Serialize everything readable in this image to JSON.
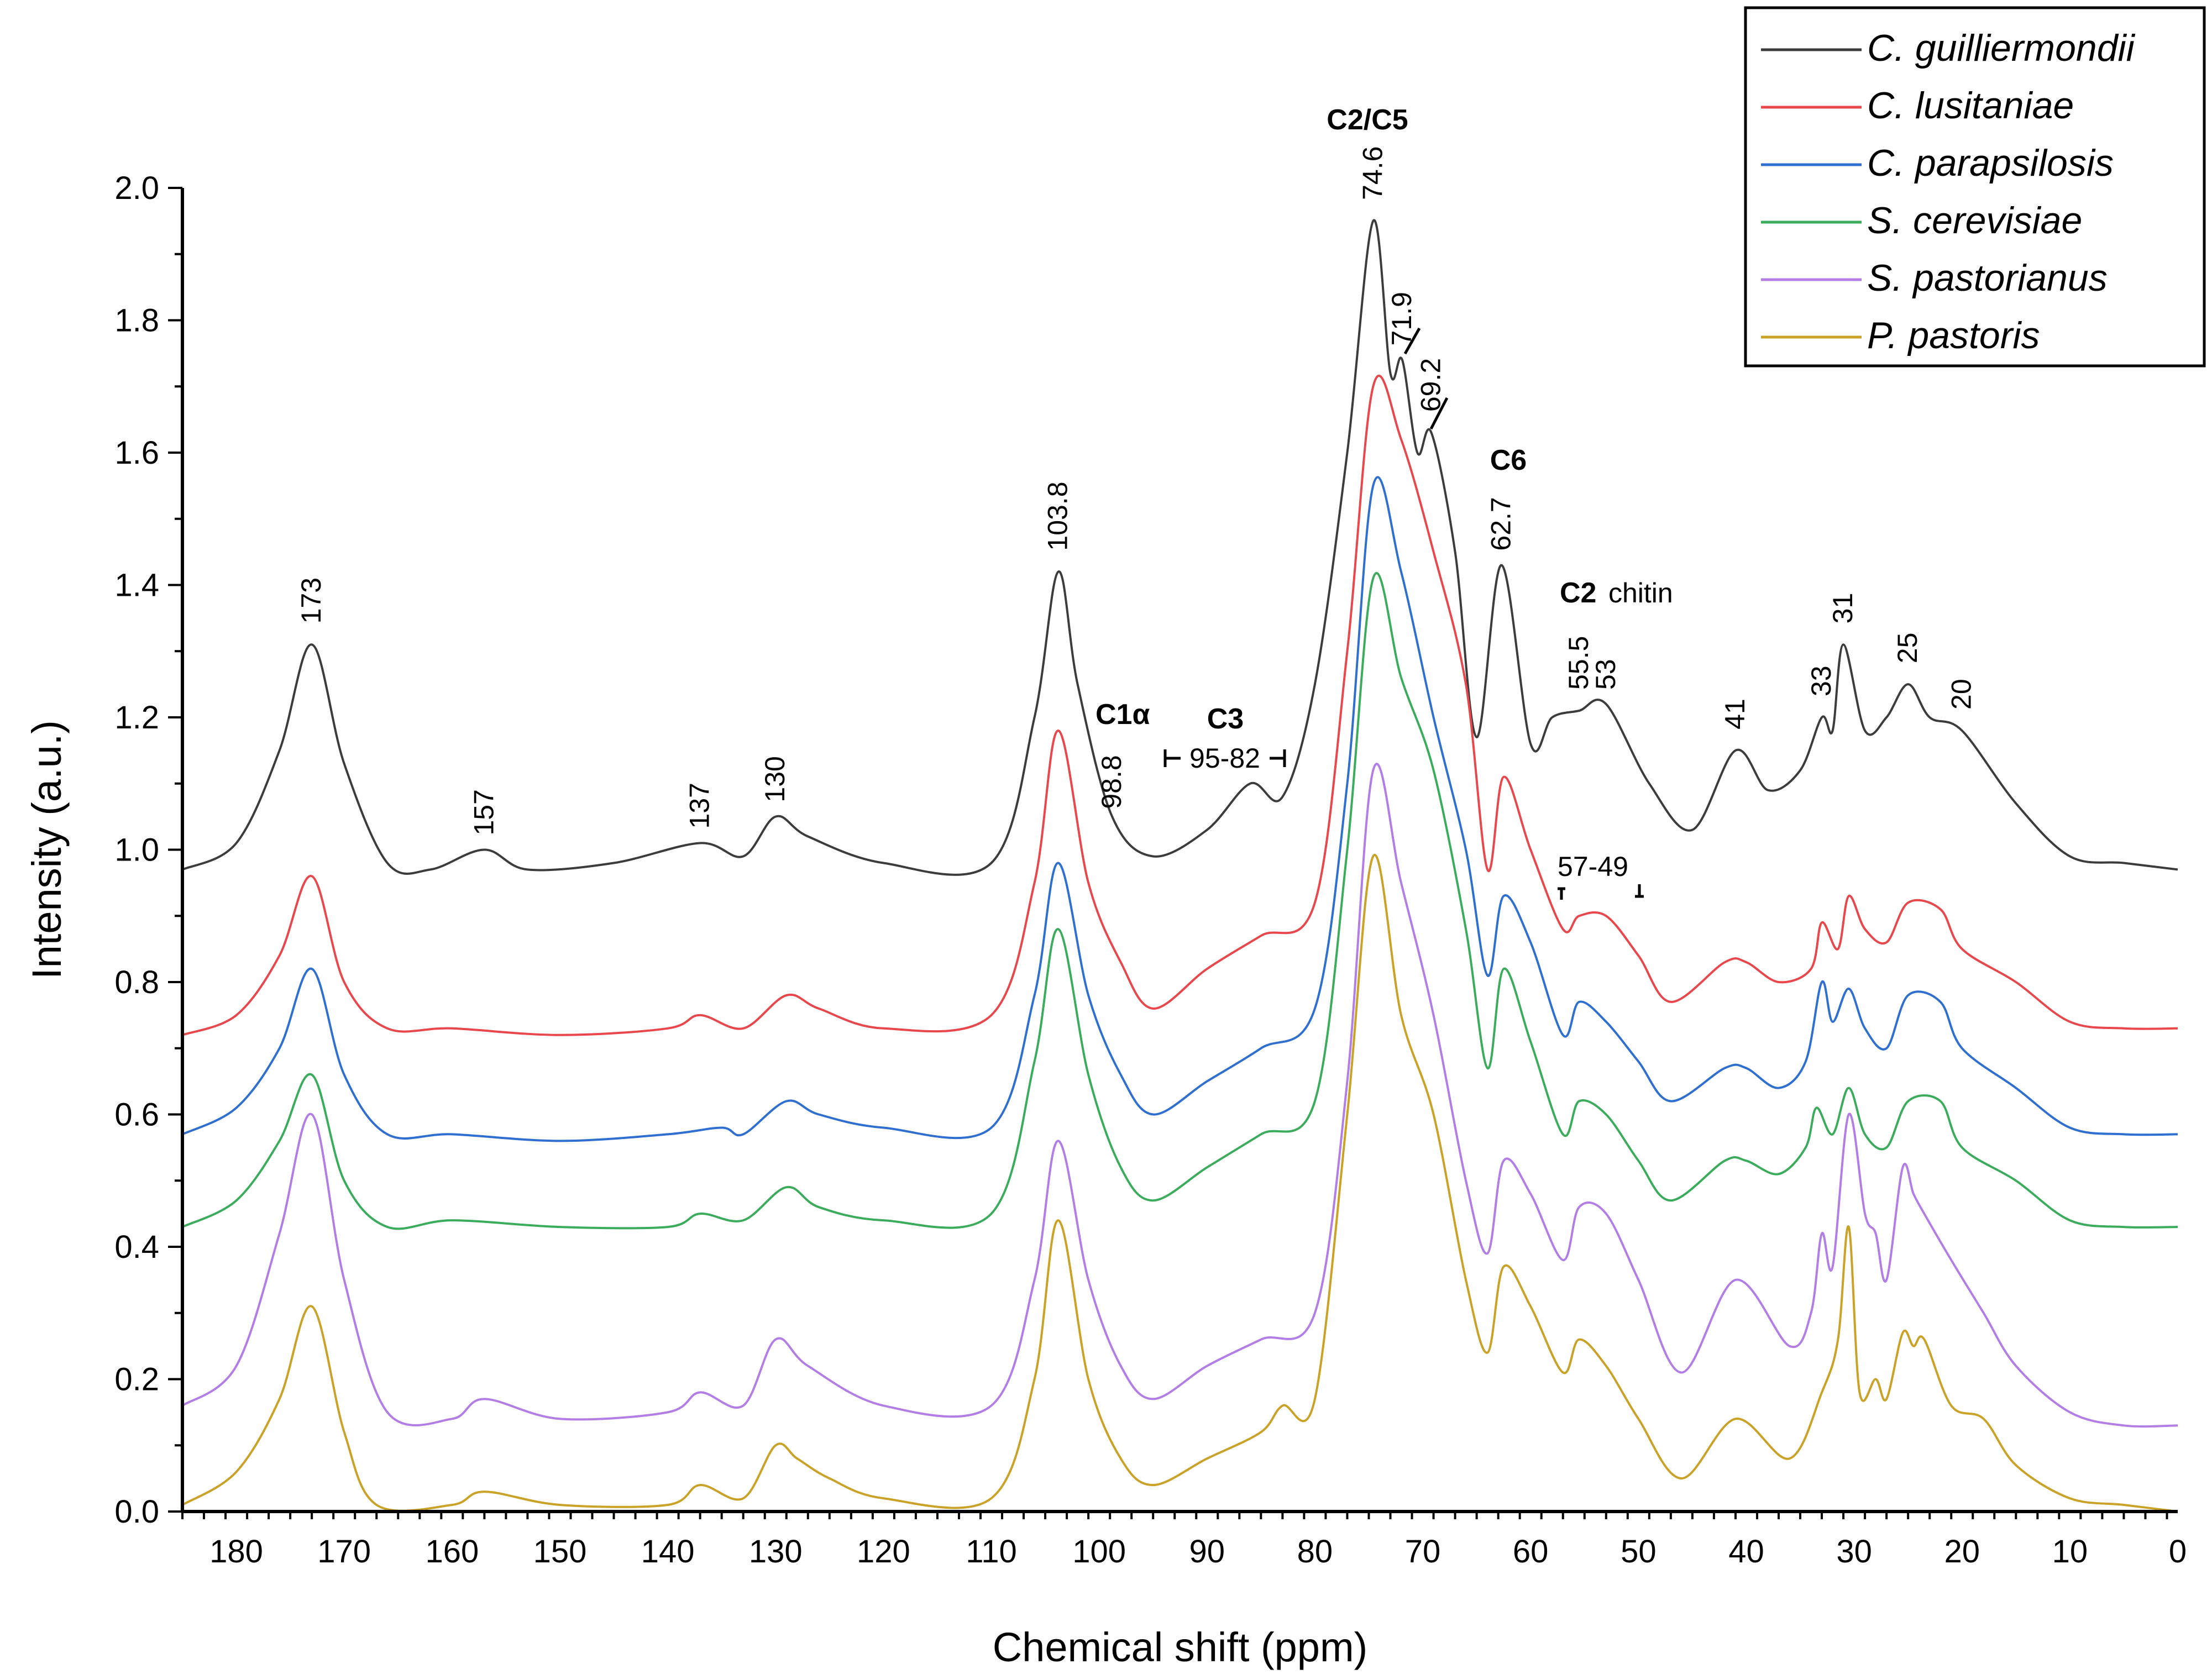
{
  "chart_data": {
    "type": "line",
    "title": "",
    "xlabel": "Chemical shift (ppm)",
    "ylabel": "Intensity (a.u.)",
    "xlim": [
      185,
      0
    ],
    "ylim": [
      0.0,
      2.0
    ],
    "x_ticks": [
      180,
      170,
      160,
      150,
      140,
      130,
      120,
      110,
      100,
      90,
      80,
      70,
      60,
      50,
      40,
      30,
      20,
      10,
      0
    ],
    "y_ticks": [
      "0.0",
      "0.2",
      "0.4",
      "0.6",
      "0.8",
      "1.0",
      "1.2",
      "1.4",
      "1.6",
      "1.8",
      "2.0"
    ],
    "y_tick_values": [
      0.0,
      0.2,
      0.4,
      0.6,
      0.8,
      1.0,
      1.2,
      1.4,
      1.6,
      1.8,
      2.0
    ],
    "legend_position": "top-right",
    "series": [
      {
        "name": "C. guilliermondii",
        "color": "#3c3c3c",
        "x": [
          185,
          180,
          176,
          173,
          170,
          166,
          162,
          157,
          153,
          145,
          137,
          133,
          130,
          127,
          120,
          110,
          106,
          103.8,
          102,
          98.8,
          95,
          90,
          86,
          83,
          80,
          77,
          74.6,
          73,
          71.9,
          70.5,
          69.2,
          67,
          65,
          62.7,
          60,
          58,
          55.5,
          53,
          49,
          45,
          41,
          38,
          35,
          33,
          32,
          31,
          29,
          27,
          25,
          23,
          20,
          15,
          10,
          5,
          0
        ],
        "values": [
          0.97,
          1.01,
          1.15,
          1.31,
          1.13,
          0.98,
          0.97,
          1.0,
          0.97,
          0.98,
          1.01,
          0.99,
          1.05,
          1.02,
          0.98,
          0.98,
          1.2,
          1.42,
          1.25,
          1.05,
          0.99,
          1.03,
          1.1,
          1.08,
          1.25,
          1.6,
          1.95,
          1.72,
          1.74,
          1.6,
          1.63,
          1.45,
          1.17,
          1.43,
          1.16,
          1.2,
          1.21,
          1.22,
          1.1,
          1.03,
          1.15,
          1.09,
          1.12,
          1.2,
          1.18,
          1.31,
          1.18,
          1.2,
          1.25,
          1.2,
          1.18,
          1.07,
          0.99,
          0.98,
          0.97
        ]
      },
      {
        "name": "C. lusitaniae",
        "color": "#e8474c",
        "x": [
          185,
          180,
          176,
          173,
          170,
          166,
          160,
          150,
          140,
          137,
          133,
          129,
          126,
          120,
          110,
          106,
          103.8,
          101,
          98,
          95,
          90,
          85,
          80,
          77,
          74.6,
          72,
          69,
          66,
          64,
          62.5,
          60,
          57,
          55.5,
          53,
          50,
          47,
          42,
          40,
          37,
          34,
          33,
          31.5,
          30.5,
          29,
          27,
          25,
          22,
          20,
          15,
          10,
          5,
          0
        ],
        "values": [
          0.72,
          0.75,
          0.84,
          0.96,
          0.8,
          0.73,
          0.73,
          0.72,
          0.73,
          0.75,
          0.73,
          0.78,
          0.76,
          0.73,
          0.75,
          0.95,
          1.18,
          0.95,
          0.83,
          0.76,
          0.82,
          0.87,
          0.92,
          1.3,
          1.7,
          1.62,
          1.45,
          1.25,
          0.97,
          1.11,
          1.0,
          0.88,
          0.9,
          0.9,
          0.84,
          0.77,
          0.83,
          0.83,
          0.8,
          0.82,
          0.89,
          0.85,
          0.93,
          0.88,
          0.86,
          0.92,
          0.91,
          0.85,
          0.8,
          0.74,
          0.73,
          0.73
        ]
      },
      {
        "name": "C. parapsilosis",
        "color": "#2f6fd0",
        "x": [
          185,
          180,
          176,
          173,
          170,
          166,
          160,
          150,
          140,
          135,
          133,
          129,
          126,
          120,
          110,
          106,
          103.8,
          101,
          98,
          95,
          90,
          85,
          80,
          77,
          74.6,
          72,
          69,
          66,
          64,
          62.5,
          60,
          57,
          55.5,
          53,
          50,
          47,
          42,
          40,
          37,
          34.5,
          33,
          32,
          30.5,
          29,
          27,
          25,
          22,
          20,
          15,
          10,
          5,
          0
        ],
        "values": [
          0.57,
          0.61,
          0.7,
          0.82,
          0.66,
          0.57,
          0.57,
          0.56,
          0.57,
          0.58,
          0.57,
          0.62,
          0.6,
          0.58,
          0.58,
          0.78,
          0.98,
          0.78,
          0.66,
          0.6,
          0.65,
          0.7,
          0.76,
          1.1,
          1.55,
          1.42,
          1.2,
          1.0,
          0.81,
          0.93,
          0.86,
          0.72,
          0.77,
          0.74,
          0.68,
          0.62,
          0.67,
          0.67,
          0.64,
          0.68,
          0.8,
          0.74,
          0.79,
          0.73,
          0.7,
          0.78,
          0.77,
          0.7,
          0.64,
          0.58,
          0.57,
          0.57
        ]
      },
      {
        "name": "S. cerevisiae",
        "color": "#3bab5c",
        "x": [
          185,
          180,
          176,
          173,
          170,
          166,
          160,
          150,
          140,
          137,
          133,
          129,
          126,
          120,
          110,
          106,
          103.8,
          101,
          98,
          95,
          90,
          85,
          80,
          77,
          74.6,
          72,
          69,
          66,
          64,
          62.5,
          60,
          57,
          55.5,
          53,
          50,
          47,
          42,
          40,
          37,
          34.5,
          33.5,
          32,
          30.5,
          29,
          27,
          25,
          22,
          20,
          15,
          10,
          5,
          0
        ],
        "values": [
          0.43,
          0.47,
          0.56,
          0.66,
          0.5,
          0.43,
          0.44,
          0.43,
          0.43,
          0.45,
          0.44,
          0.49,
          0.46,
          0.44,
          0.45,
          0.68,
          0.88,
          0.66,
          0.52,
          0.47,
          0.52,
          0.57,
          0.62,
          1.0,
          1.41,
          1.26,
          1.12,
          0.88,
          0.67,
          0.82,
          0.71,
          0.57,
          0.62,
          0.6,
          0.53,
          0.47,
          0.53,
          0.53,
          0.51,
          0.55,
          0.61,
          0.57,
          0.64,
          0.57,
          0.55,
          0.62,
          0.62,
          0.55,
          0.5,
          0.44,
          0.43,
          0.43
        ]
      },
      {
        "name": "S. pastorianus",
        "color": "#b37de6",
        "x": [
          185,
          180,
          176,
          173,
          170,
          166,
          160,
          157,
          150,
          140,
          137,
          133,
          130,
          127,
          120,
          110,
          106,
          103.8,
          101,
          98,
          95,
          90,
          85,
          80,
          77,
          74.6,
          72,
          69,
          66,
          64,
          62.5,
          60,
          57,
          55.5,
          53,
          50,
          46,
          41,
          36,
          34,
          33,
          32,
          30.5,
          29,
          28,
          27,
          25.5,
          24.5,
          23.5,
          21,
          18,
          15,
          10,
          5,
          0
        ],
        "values": [
          0.16,
          0.22,
          0.42,
          0.6,
          0.35,
          0.15,
          0.14,
          0.17,
          0.14,
          0.15,
          0.18,
          0.16,
          0.26,
          0.22,
          0.16,
          0.16,
          0.35,
          0.56,
          0.35,
          0.22,
          0.17,
          0.22,
          0.26,
          0.3,
          0.65,
          1.12,
          0.95,
          0.75,
          0.5,
          0.39,
          0.53,
          0.48,
          0.38,
          0.46,
          0.45,
          0.35,
          0.21,
          0.35,
          0.25,
          0.3,
          0.42,
          0.37,
          0.6,
          0.45,
          0.42,
          0.35,
          0.52,
          0.48,
          0.45,
          0.38,
          0.3,
          0.22,
          0.15,
          0.13,
          0.13
        ]
      },
      {
        "name": "P. pastoris",
        "color": "#c9a227",
        "x": [
          185,
          180,
          176,
          173,
          170,
          167,
          160,
          157,
          150,
          140,
          137,
          133,
          130,
          128,
          125,
          120,
          110,
          106,
          103.8,
          101,
          98,
          95,
          90,
          85,
          83,
          80,
          77,
          74.6,
          72,
          69,
          66,
          64,
          62.5,
          60,
          57,
          55.5,
          53,
          50,
          46,
          41,
          36,
          33,
          31.5,
          30.5,
          29.5,
          28,
          27,
          25.5,
          24.5,
          23.5,
          21,
          18,
          15,
          10,
          5,
          0
        ],
        "values": [
          0.01,
          0.06,
          0.17,
          0.31,
          0.12,
          0.01,
          0.01,
          0.03,
          0.01,
          0.01,
          0.04,
          0.02,
          0.1,
          0.08,
          0.05,
          0.02,
          0.02,
          0.2,
          0.44,
          0.2,
          0.08,
          0.04,
          0.08,
          0.12,
          0.16,
          0.17,
          0.6,
          0.99,
          0.75,
          0.6,
          0.35,
          0.24,
          0.37,
          0.31,
          0.21,
          0.26,
          0.22,
          0.14,
          0.05,
          0.14,
          0.08,
          0.18,
          0.26,
          0.43,
          0.18,
          0.2,
          0.17,
          0.27,
          0.25,
          0.26,
          0.16,
          0.14,
          0.07,
          0.02,
          0.01,
          0.0
        ]
      }
    ],
    "peak_labels": [
      {
        "text": "173",
        "x": 173,
        "y": 1.32
      },
      {
        "text": "157",
        "x": 157,
        "y": 1.0
      },
      {
        "text": "137",
        "x": 137,
        "y": 1.01
      },
      {
        "text": "130",
        "x": 130,
        "y": 1.05
      },
      {
        "text": "103.8",
        "x": 103.8,
        "y": 1.43
      },
      {
        "text": "98.8",
        "x": 98.8,
        "y": 1.04
      },
      {
        "text": "74.6",
        "x": 74.6,
        "y": 1.96
      },
      {
        "text": "71.9",
        "x": 71.9,
        "y": 1.74
      },
      {
        "text": "69.2",
        "x": 69.2,
        "y": 1.64
      },
      {
        "text": "62.7",
        "x": 62.7,
        "y": 1.43
      },
      {
        "text": "55.5",
        "x": 55.5,
        "y": 1.22
      },
      {
        "text": "53",
        "x": 53,
        "y": 1.22
      },
      {
        "text": "41",
        "x": 41,
        "y": 1.16
      },
      {
        "text": "33",
        "x": 33,
        "y": 1.21
      },
      {
        "text": "31",
        "x": 31,
        "y": 1.32
      },
      {
        "text": "25",
        "x": 25,
        "y": 1.26
      },
      {
        "text": "20",
        "x": 20,
        "y": 1.19
      }
    ],
    "region_labels": {
      "c2c5": "C2/C5",
      "c6": "C6",
      "c1a": "C1α",
      "c3": "C3",
      "c3_range": "95-82",
      "c2": "C2",
      "chitin": "chitin",
      "range_57_49": "57-49"
    }
  }
}
